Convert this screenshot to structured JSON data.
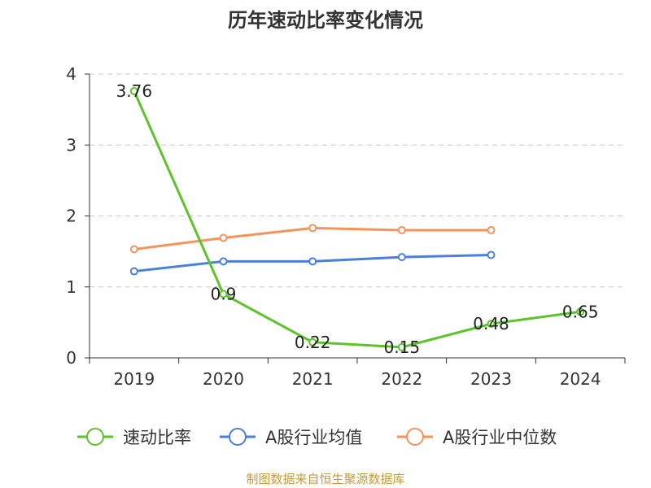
{
  "chart_data": {
    "type": "line",
    "title": "历年速动比率变化情况",
    "xlabel": "",
    "ylabel": "",
    "categories": [
      "2019",
      "2020",
      "2021",
      "2022",
      "2023",
      "2024"
    ],
    "ylim": [
      0,
      4
    ],
    "yticks": [
      0,
      1,
      2,
      3,
      4
    ],
    "grid": true,
    "legend_position": "bottom",
    "series": [
      {
        "name": "速动比率",
        "color": "#5cc429",
        "values": [
          3.76,
          0.9,
          0.22,
          0.15,
          0.48,
          0.65
        ],
        "labels": [
          "3.76",
          "0.9",
          "0.22",
          "0.15",
          "0.48",
          "0.65"
        ]
      },
      {
        "name": "A股行业均值",
        "color": "#4a7fdc",
        "values": [
          1.22,
          1.36,
          1.36,
          1.42,
          1.45,
          null
        ]
      },
      {
        "name": "A股行业中位数",
        "color": "#f5935b",
        "values": [
          1.53,
          1.69,
          1.83,
          1.8,
          1.8,
          null
        ]
      }
    ],
    "source": "制图数据来自恒生聚源数据库"
  }
}
